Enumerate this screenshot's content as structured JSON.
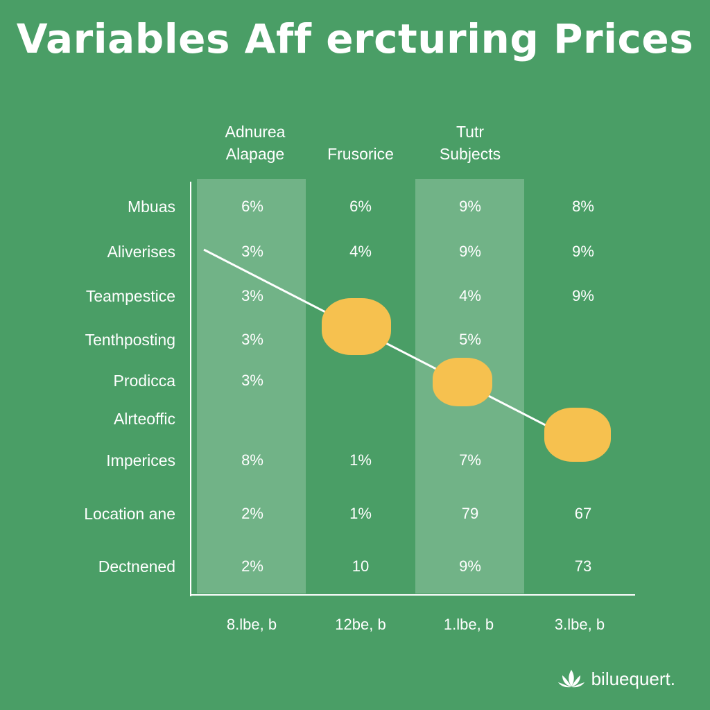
{
  "chart_data": {
    "type": "table",
    "title": "Variables Aff ercturing Prices",
    "columns": [
      "Adnurea\nAlapage",
      "Frusorice",
      "Tutr\nSubjects",
      ""
    ],
    "rows": [
      {
        "label": "Mbuas",
        "values": [
          "6%",
          "6%",
          "9%",
          "8%"
        ]
      },
      {
        "label": "Aliverises",
        "values": [
          "3%",
          "4%",
          "9%",
          "9%"
        ]
      },
      {
        "label": "Teampestice",
        "values": [
          "3%",
          "",
          "4%",
          "9%"
        ]
      },
      {
        "label": "Tenthposting",
        "values": [
          "3%",
          "",
          "5%",
          ""
        ]
      },
      {
        "label": "Prodicca",
        "values": [
          "3%",
          "",
          "",
          ""
        ]
      },
      {
        "label": "Alrteoffic",
        "values": [
          "",
          "",
          "",
          ""
        ]
      },
      {
        "label": "Imperices",
        "values": [
          "8%",
          "1%",
          "7%",
          ""
        ]
      },
      {
        "label": "Location ane",
        "values": [
          "2%",
          "1%",
          "79",
          "67"
        ]
      },
      {
        "label": "Dectnened",
        "values": [
          "2%",
          "10",
          "9%",
          "73"
        ]
      }
    ],
    "x_ticks": [
      "8.lbe, b",
      "12be, b",
      "1.lbe, b",
      "3.lbe, b"
    ],
    "trend_line": {
      "color": "#ffffff"
    },
    "markers": {
      "count": 3,
      "color": "#f6c14f"
    },
    "colors": {
      "background": "#4a9e66",
      "band": "#ffffff",
      "marker": "#f6c14f"
    }
  },
  "brand": {
    "name": "biluequert.",
    "icon": "lotus-icon"
  }
}
